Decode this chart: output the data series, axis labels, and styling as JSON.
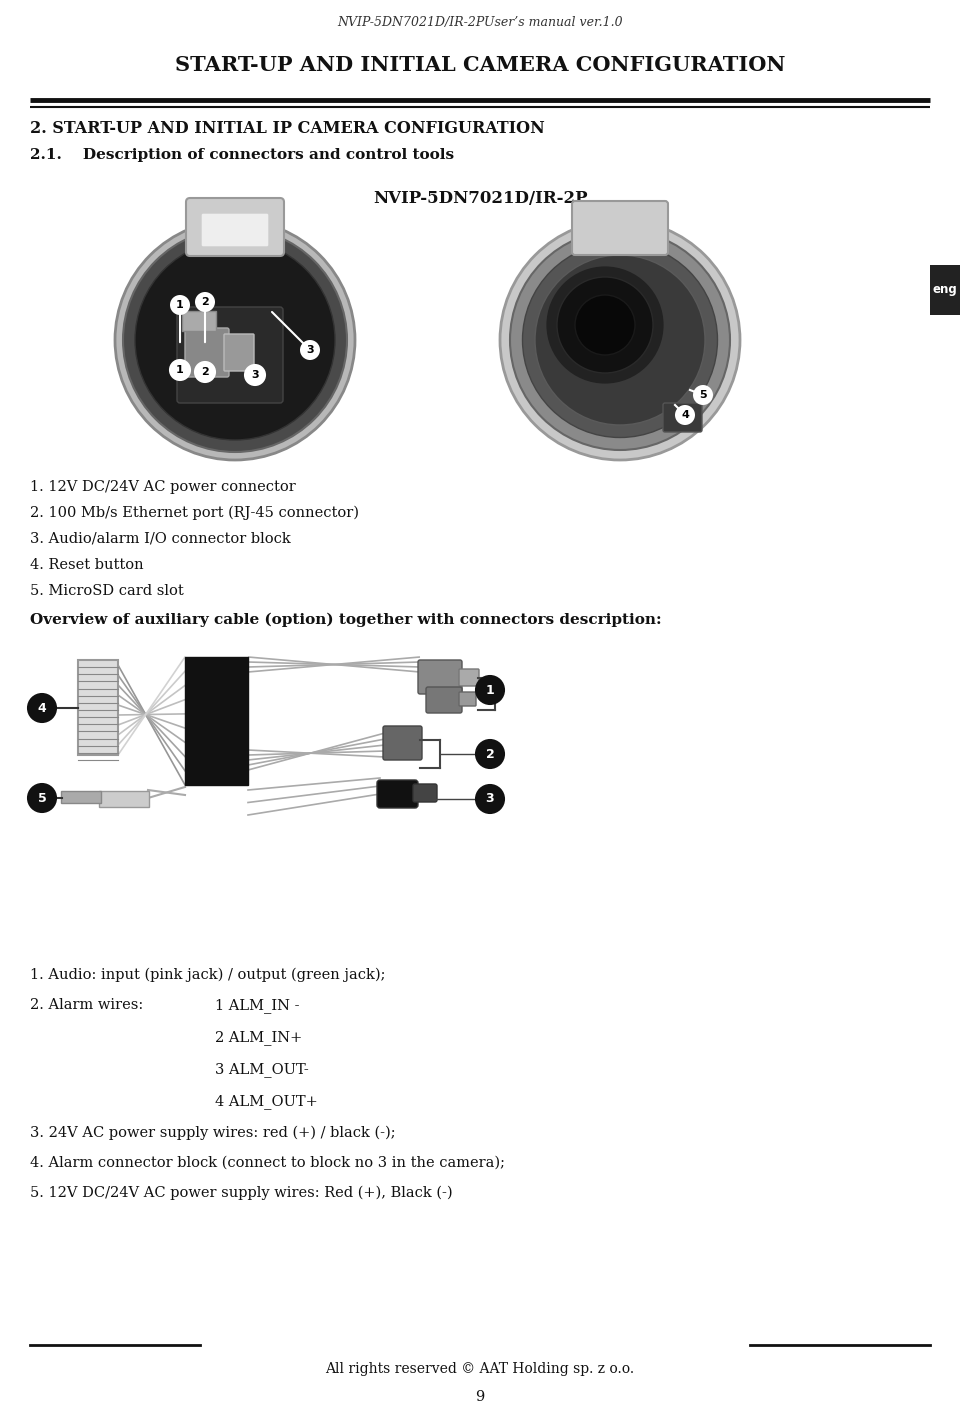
{
  "page_title": "NVIP-5DN7021D/IR-2PUser’s manual ver.1.0",
  "section_title": "START-UP AND INITIAL CAMERA CONFIGURATION",
  "section2_title": "2. START-UP AND INITIAL IP CAMERA CONFIGURATION",
  "subsection_title": "2.1.    Description of connectors and control tools",
  "model_name": "NVIP-5DN7021D/IR-2P",
  "eng_label": "eng",
  "bullet_items": [
    "1. 12V DC/24V AC power connector",
    "2. 100 Mb/s Ethernet port (RJ-45 connector)",
    "3. Audio/alarm I/O connector block",
    "4. Reset button",
    "5. MicroSD card slot"
  ],
  "overview_title": "Overview of auxiliary cable (option) together with connectors description:",
  "desc_item1": "1. Audio: input (pink jack) / output (green jack);",
  "desc_item2_label": "2. Alarm wires:",
  "alarm_items": [
    "1 ALM_IN -",
    "2 ALM_IN+",
    "3 ALM_OUT-",
    "4 ALM_OUT+"
  ],
  "desc_items2": [
    "3. 24V AC power supply wires: red (+) / black (-);",
    "4. Alarm connector block (connect to block no 3 in the camera);",
    "5. 12V DC/24V AC power supply wires: Red (+), Black (-)"
  ],
  "footer_text": "All rights reserved © AAT Holding sp. z o.o.",
  "page_number": "9",
  "bg_color": "#ffffff",
  "text_color": "#000000"
}
